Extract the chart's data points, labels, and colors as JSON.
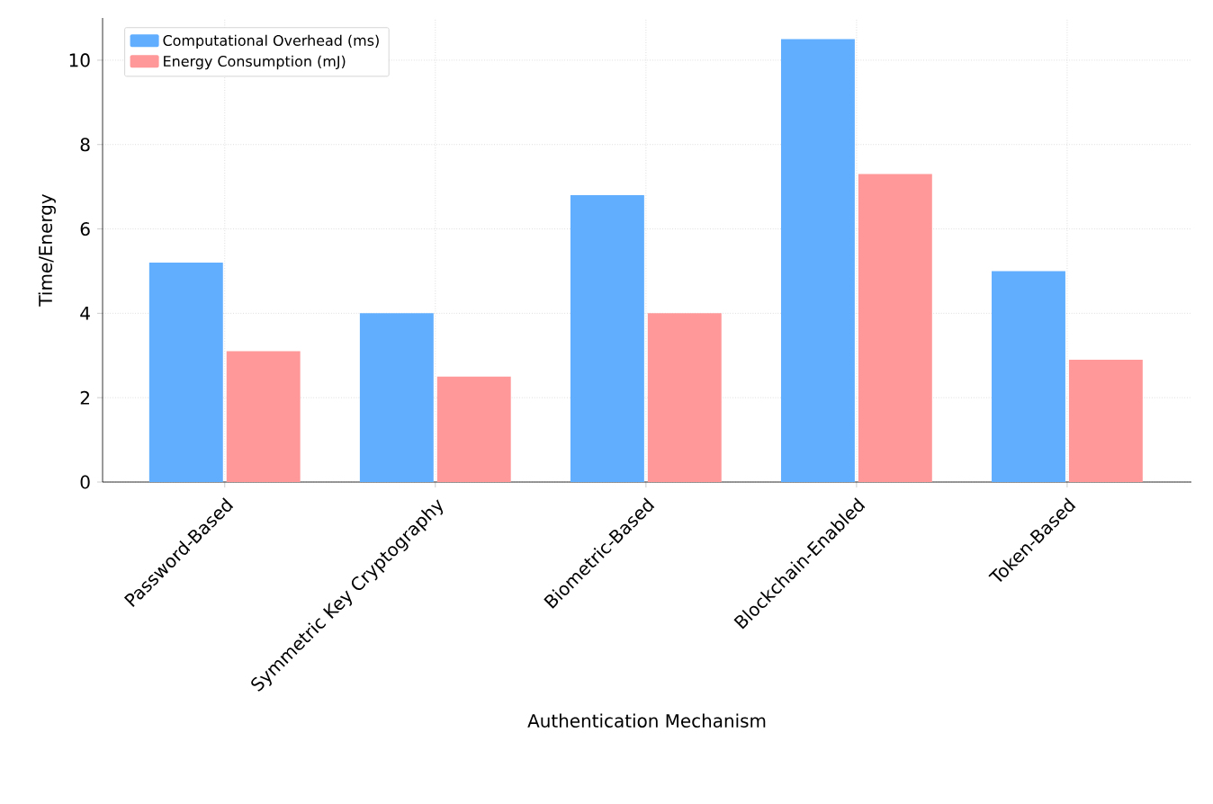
{
  "chart_data": {
    "type": "bar",
    "xlabel": "Authentication Mechanism",
    "ylabel": "Time/Energy",
    "categories": [
      "Password-Based",
      "Symmetric Key Cryptography",
      "Biometric-Based",
      "Blockchain-Enabled",
      "Token-Based"
    ],
    "series": [
      {
        "name": "Computational Overhead (ms)",
        "color": "#61aeff",
        "values": [
          5.2,
          4.0,
          6.8,
          10.5,
          5.0
        ]
      },
      {
        "name": "Energy Consumption (mJ)",
        "color": "#ff9999",
        "values": [
          3.1,
          2.5,
          4.0,
          7.3,
          2.9
        ]
      }
    ],
    "ylim": [
      0,
      11
    ],
    "yticks": [
      0,
      2,
      4,
      6,
      8,
      10
    ],
    "grid": true,
    "legend": "top left"
  }
}
